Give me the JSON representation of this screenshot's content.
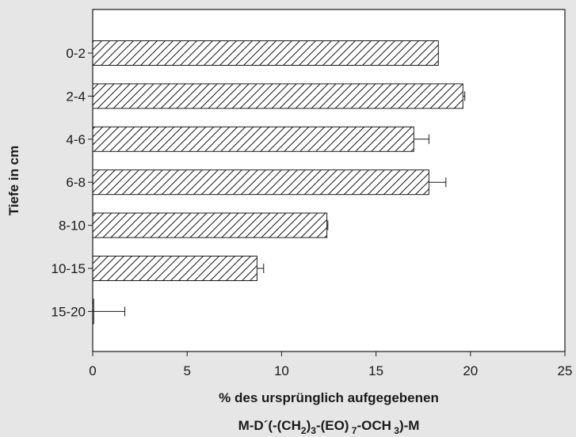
{
  "chart_data": {
    "type": "bar",
    "orientation": "horizontal",
    "categories": [
      "0-2",
      "2-4",
      "4-6",
      "6-8",
      "8-10",
      "10-15",
      "15-20"
    ],
    "values": [
      18.3,
      19.6,
      17.0,
      17.8,
      12.4,
      8.7,
      0.05
    ],
    "error": [
      0.0,
      0.1,
      0.8,
      0.9,
      0.05,
      0.35,
      1.65
    ],
    "xlim": [
      0,
      25
    ],
    "xticks": [
      "0",
      "5",
      "10",
      "15",
      "20",
      "25"
    ],
    "ylabel": "Tiefe in cm",
    "xlabel_line1": "% des ursprünglich aufgegebenen",
    "xlabel_line2": "M-D´(-(CH2)3-(EO)7-OCH3)-M",
    "bar_pattern": "diagonal-hatch",
    "grid": false,
    "background_color": "#e6e6e6",
    "plot_background": "#ffffff",
    "bar_stroke": "#1a1a1a"
  }
}
